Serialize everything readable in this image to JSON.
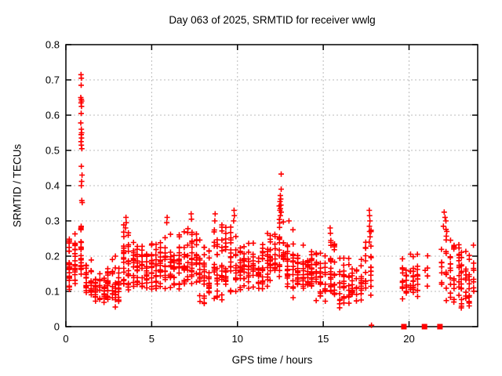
{
  "title": "Day 063 of 2025, SRMTID for receiver wwlg",
  "axes": {
    "x": {
      "label": "GPS time / hours",
      "min": 0,
      "max": 24,
      "ticks": [
        0,
        5,
        10,
        15,
        20
      ],
      "tick_labels": [
        "0",
        "5",
        "10",
        "15",
        "20"
      ]
    },
    "y": {
      "label": "SRMTID / TECUs",
      "min": 0,
      "max": 0.8,
      "ticks": [
        0,
        0.1,
        0.2,
        0.3,
        0.4,
        0.5,
        0.6,
        0.7,
        0.8
      ],
      "tick_labels": [
        "0",
        "0.1",
        "0.2",
        "0.3",
        "0.4",
        "0.5",
        "0.6",
        "0.7",
        "0.8"
      ]
    }
  },
  "colors": {
    "marker": "#ff0000",
    "grid": "#bbbbbb",
    "border": "#000000",
    "background": "#ffffff",
    "text": "#000000"
  },
  "chart_data": {
    "type": "scatter",
    "title": "Day 063 of 2025, SRMTID for receiver wwlg",
    "xlabel": "GPS time / hours",
    "ylabel": "SRMTID / TECUs",
    "x_range": [
      0,
      24
    ],
    "y_range": [
      0,
      0.8
    ],
    "grid": true,
    "legend": "none",
    "series_name": "SRMTID",
    "marker": "plus",
    "marker_size_px": 7,
    "notable_points": [
      [
        0.88,
        0.715
      ],
      [
        0.9,
        0.705
      ],
      [
        0.89,
        0.685
      ],
      [
        0.87,
        0.65
      ],
      [
        0.9,
        0.645
      ],
      [
        0.92,
        0.64
      ],
      [
        0.88,
        0.635
      ],
      [
        0.91,
        0.625
      ],
      [
        0.89,
        0.605
      ],
      [
        0.87,
        0.578
      ],
      [
        0.9,
        0.56
      ],
      [
        0.92,
        0.55
      ],
      [
        0.89,
        0.545
      ],
      [
        0.91,
        0.535
      ],
      [
        0.88,
        0.525
      ],
      [
        0.9,
        0.515
      ],
      [
        0.93,
        0.505
      ],
      [
        0.9,
        0.455
      ],
      [
        0.94,
        0.43
      ],
      [
        0.92,
        0.412
      ],
      [
        0.9,
        0.4
      ],
      [
        0.93,
        0.358
      ],
      [
        0.95,
        0.352
      ],
      [
        12.55,
        0.433
      ],
      [
        12.55,
        0.39
      ],
      [
        12.5,
        0.372
      ],
      [
        12.52,
        0.362
      ],
      [
        12.48,
        0.355
      ],
      [
        12.53,
        0.345
      ],
      [
        12.5,
        0.335
      ],
      [
        12.47,
        0.33
      ],
      [
        12.55,
        0.325
      ],
      [
        12.5,
        0.315
      ],
      [
        17.68,
        0.33
      ],
      [
        17.7,
        0.315
      ],
      [
        17.72,
        0.3
      ],
      [
        17.69,
        0.285
      ],
      [
        17.7,
        0.27
      ],
      [
        17.73,
        0.255
      ],
      [
        17.68,
        0.24
      ],
      [
        22.05,
        0.325
      ],
      [
        22.1,
        0.31
      ],
      [
        22.15,
        0.3
      ],
      [
        22.0,
        0.285
      ],
      [
        22.2,
        0.27
      ],
      [
        9.8,
        0.33
      ],
      [
        9.82,
        0.315
      ],
      [
        9.78,
        0.3
      ],
      [
        7.3,
        0.32
      ],
      [
        7.32,
        0.305
      ],
      [
        8.7,
        0.32
      ],
      [
        8.68,
        0.3
      ],
      [
        3.5,
        0.31
      ],
      [
        3.52,
        0.295
      ],
      [
        3.48,
        0.28
      ],
      [
        5.9,
        0.31
      ],
      [
        5.88,
        0.295
      ],
      [
        13.0,
        0.3
      ],
      [
        15.4,
        0.28
      ],
      [
        15.42,
        0.265
      ],
      [
        17.81,
        0.004
      ]
    ],
    "density_bins_format": [
      "t_start_h",
      "t_end_h",
      "n_points",
      "y_min",
      "y_max",
      "y_peak"
    ],
    "density_bins": [
      [
        0.0,
        0.35,
        28,
        0.09,
        0.27,
        0.14
      ],
      [
        0.35,
        0.7,
        20,
        0.11,
        0.3,
        0.18
      ],
      [
        0.7,
        1.05,
        22,
        0.1,
        0.33,
        0.17
      ],
      [
        1.05,
        1.6,
        30,
        0.07,
        0.2,
        0.12
      ],
      [
        1.6,
        2.6,
        55,
        0.06,
        0.17,
        0.11
      ],
      [
        2.6,
        3.2,
        35,
        0.05,
        0.22,
        0.11
      ],
      [
        3.2,
        3.8,
        35,
        0.08,
        0.31,
        0.14
      ],
      [
        3.8,
        4.6,
        45,
        0.1,
        0.27,
        0.17
      ],
      [
        4.6,
        5.4,
        45,
        0.09,
        0.25,
        0.15
      ],
      [
        5.4,
        6.2,
        45,
        0.1,
        0.31,
        0.16
      ],
      [
        6.2,
        7.0,
        45,
        0.09,
        0.29,
        0.16
      ],
      [
        7.0,
        7.7,
        40,
        0.1,
        0.32,
        0.17
      ],
      [
        7.7,
        8.5,
        45,
        0.05,
        0.26,
        0.14
      ],
      [
        8.5,
        9.2,
        40,
        0.04,
        0.32,
        0.15
      ],
      [
        9.2,
        10.0,
        45,
        0.08,
        0.33,
        0.16
      ],
      [
        10.0,
        10.8,
        45,
        0.08,
        0.28,
        0.15
      ],
      [
        10.8,
        11.6,
        45,
        0.09,
        0.26,
        0.15
      ],
      [
        11.6,
        12.3,
        40,
        0.1,
        0.3,
        0.16
      ],
      [
        12.3,
        12.8,
        25,
        0.12,
        0.37,
        0.2
      ],
      [
        12.8,
        13.4,
        35,
        0.08,
        0.3,
        0.16
      ],
      [
        13.4,
        14.2,
        45,
        0.08,
        0.24,
        0.14
      ],
      [
        14.2,
        15.0,
        45,
        0.07,
        0.22,
        0.13
      ],
      [
        15.0,
        15.8,
        45,
        0.06,
        0.28,
        0.13
      ],
      [
        15.8,
        16.6,
        40,
        0.05,
        0.22,
        0.12
      ],
      [
        16.6,
        17.3,
        35,
        0.06,
        0.2,
        0.11
      ],
      [
        17.3,
        17.9,
        25,
        0.07,
        0.3,
        0.13
      ],
      [
        19.5,
        20.6,
        50,
        0.07,
        0.21,
        0.13
      ],
      [
        20.8,
        21.2,
        6,
        0.11,
        0.22,
        0.15
      ],
      [
        21.8,
        23.0,
        55,
        0.05,
        0.28,
        0.15
      ],
      [
        22.9,
        23.9,
        45,
        0.03,
        0.25,
        0.12
      ]
    ],
    "data_gaps_hours": [
      [
        17.9,
        19.5
      ],
      [
        20.6,
        20.8
      ],
      [
        21.2,
        21.8
      ]
    ],
    "zero_axis_squares_x": [
      19.7,
      20.9,
      21.8
    ],
    "render_seed": 2025063
  }
}
